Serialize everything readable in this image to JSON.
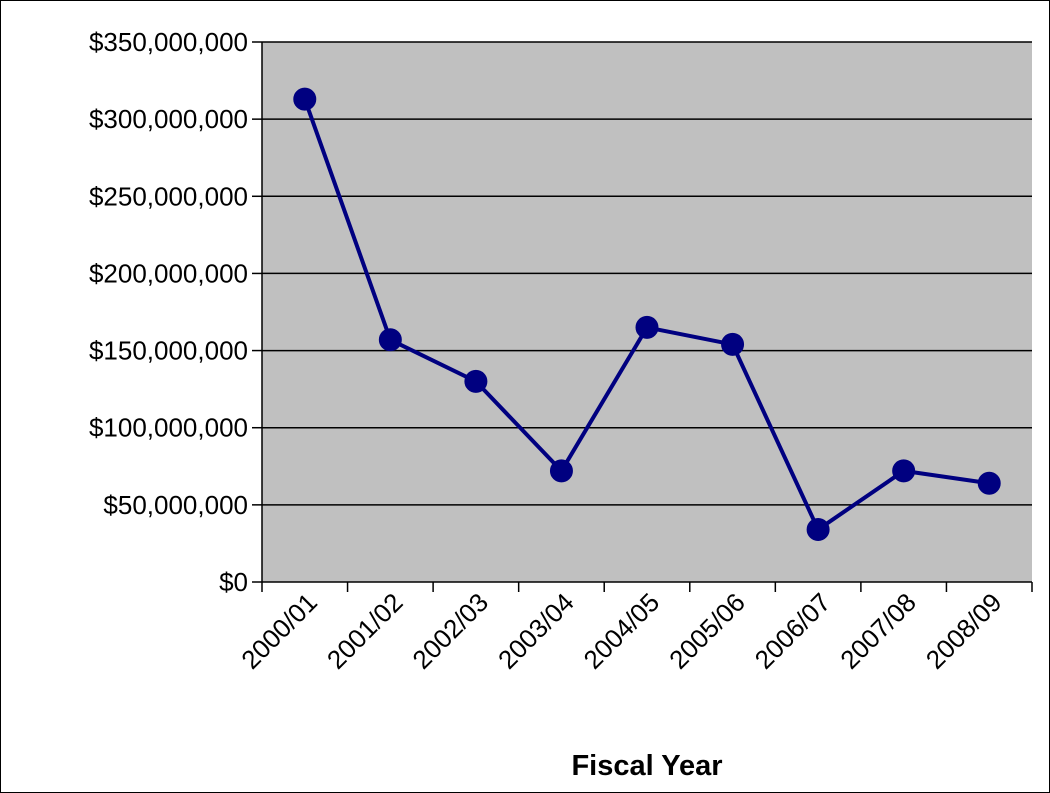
{
  "chart_data": {
    "type": "line",
    "title": "",
    "xlabel": "Fiscal Year",
    "ylabel": "",
    "categories": [
      "2000/01",
      "2001/02",
      "2002/03",
      "2003/04",
      "2004/05",
      "2005/06",
      "2006/07",
      "2007/08",
      "2008/09"
    ],
    "series": [
      {
        "values": [
          313000000,
          157000000,
          130000000,
          72000000,
          165000000,
          154000000,
          34000000,
          72000000,
          64000000
        ]
      }
    ],
    "ylim": [
      0,
      350000000
    ],
    "yticks": [
      0,
      50000000,
      100000000,
      150000000,
      200000000,
      250000000,
      300000000,
      350000000
    ],
    "ytick_labels": [
      "$0",
      "$50,000,000",
      "$100,000,000",
      "$150,000,000",
      "$200,000,000",
      "$250,000,000",
      "$300,000,000",
      "$350,000,000"
    ],
    "grid": true,
    "legend": "none",
    "colors": {
      "plot_background": "#c0c0c0",
      "line": "#000080",
      "marker": "#000080",
      "gridline": "#000000"
    }
  }
}
